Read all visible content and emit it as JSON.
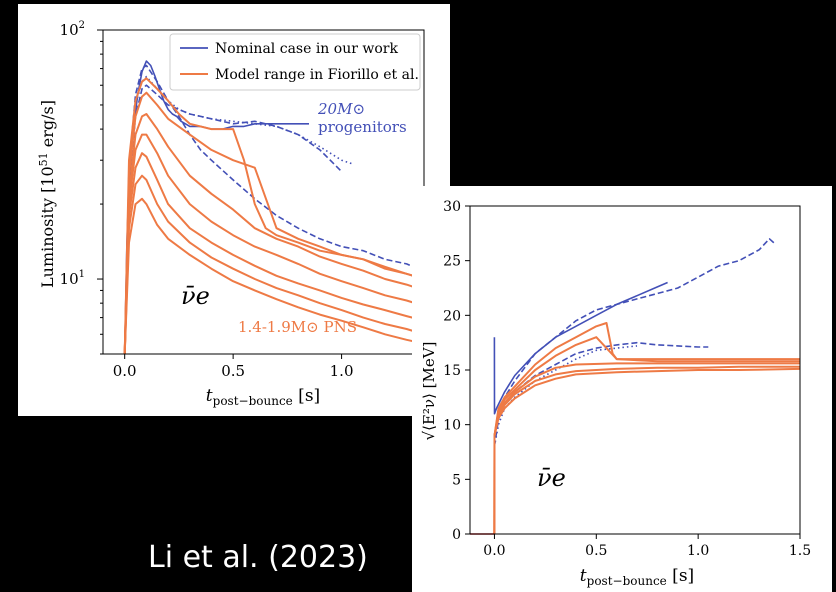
{
  "citation": "Li et al. (2023)",
  "colors": {
    "blue": "#4350b7",
    "orange": "#ee7a45",
    "background": "#000000",
    "panel": "#ffffff"
  },
  "chart_data": [
    {
      "type": "line",
      "xlabel": "t_post−bounce [s]",
      "ylabel": "Luminosity [10^51 erg/s]",
      "yscale": "log",
      "xlim": [
        -0.1,
        1.38
      ],
      "ylim": [
        5,
        100
      ],
      "xticks": [
        "0.0",
        "0.5",
        "1.0"
      ],
      "yticks": [
        "10^1",
        "10^2"
      ],
      "legend": {
        "placement": "top-right",
        "entries": [
          "Nominal case in our work",
          "Model range in Fiorillo et al."
        ]
      },
      "annotations": {
        "flavor": "ν̄e",
        "progenitors": "20M⊙ progenitors",
        "pns": "1.4-1.9M⊙ PNS"
      },
      "series": [
        {
          "name": "Nominal case in our work",
          "color": "#4350b7",
          "style": "solid",
          "x": [
            0,
            0.01,
            0.02,
            0.04,
            0.06,
            0.08,
            0.1,
            0.12,
            0.14,
            0.16,
            0.18,
            0.2,
            0.22,
            0.24,
            0.26,
            0.28,
            0.3,
            0.35,
            0.4,
            0.45,
            0.5,
            0.55,
            0.6,
            0.65,
            0.7,
            0.75,
            0.8,
            0.85
          ],
          "y": [
            5,
            14,
            24,
            40,
            55,
            68,
            75,
            72,
            65,
            58,
            52,
            48,
            46,
            45,
            43,
            42,
            41,
            41,
            40,
            40,
            41,
            41,
            42,
            42,
            42,
            42,
            42,
            42
          ]
        },
        {
          "color": "#4350b7",
          "style": "dashed",
          "x": [
            0,
            0.02,
            0.05,
            0.08,
            0.1,
            0.15,
            0.2,
            0.25,
            0.3,
            0.35,
            0.4,
            0.5,
            0.6,
            0.7,
            0.8,
            0.9,
            1.0,
            1.1,
            1.2,
            1.3,
            1.35
          ],
          "y": [
            5,
            28,
            55,
            70,
            72,
            62,
            52,
            45,
            38,
            33,
            30,
            25,
            21,
            18,
            16,
            14.5,
            13.5,
            13,
            12,
            11.5,
            11
          ]
        },
        {
          "color": "#4350b7",
          "style": "dotted",
          "x": [
            0,
            0.02,
            0.05,
            0.08,
            0.1,
            0.15,
            0.2,
            0.25,
            0.3,
            0.4,
            0.5,
            0.6,
            0.7,
            0.8,
            0.9,
            1.0,
            1.05
          ],
          "y": [
            5,
            25,
            50,
            62,
            65,
            58,
            52,
            48,
            46,
            44,
            43,
            42,
            41,
            38,
            34,
            30,
            29
          ]
        },
        {
          "color": "#4350b7",
          "style": "dashed",
          "x": [
            0,
            0.02,
            0.05,
            0.08,
            0.1,
            0.15,
            0.2,
            0.3,
            0.4,
            0.5,
            0.6,
            0.7,
            0.8,
            0.9,
            1.0
          ],
          "y": [
            5,
            22,
            45,
            58,
            60,
            55,
            50,
            46,
            44,
            42,
            43,
            41,
            38,
            33,
            27
          ]
        },
        {
          "name": "Model range in Fiorillo et al.",
          "color": "#ee7a45",
          "style": "solid",
          "x": [
            0,
            0.02,
            0.05,
            0.08,
            0.1,
            0.15,
            0.2,
            0.25,
            0.3,
            0.4,
            0.5,
            0.55,
            0.6,
            0.65,
            0.7,
            0.8,
            0.9,
            1.0,
            1.1,
            1.2,
            1.3,
            1.38
          ],
          "y": [
            5,
            30,
            52,
            62,
            64,
            58,
            52,
            46,
            42,
            40,
            40,
            30,
            20,
            16,
            15,
            14,
            13,
            12.5,
            12,
            11,
            10.5,
            10
          ]
        },
        {
          "color": "#ee7a45",
          "style": "solid",
          "x": [
            0,
            0.02,
            0.05,
            0.08,
            0.1,
            0.15,
            0.2,
            0.3,
            0.4,
            0.5,
            0.6,
            0.7,
            0.8,
            0.9,
            1.0,
            1.1,
            1.2,
            1.3,
            1.38
          ],
          "y": [
            5,
            26,
            45,
            54,
            56,
            50,
            44,
            38,
            33,
            30,
            28,
            16,
            14.5,
            13.5,
            12.5,
            12,
            11.2,
            10.5,
            10
          ]
        },
        {
          "color": "#ee7a45",
          "style": "solid",
          "x": [
            0,
            0.02,
            0.05,
            0.08,
            0.1,
            0.15,
            0.2,
            0.3,
            0.4,
            0.5,
            0.6,
            0.7,
            0.8,
            0.9,
            1.0,
            1.1,
            1.2,
            1.3,
            1.38
          ],
          "y": [
            5,
            22,
            38,
            45,
            46,
            40,
            34,
            26,
            22,
            19,
            16,
            14.5,
            13.5,
            12.3,
            11.5,
            10.8,
            10,
            9.5,
            9
          ]
        },
        {
          "color": "#ee7a45",
          "style": "solid",
          "x": [
            0,
            0.02,
            0.05,
            0.08,
            0.1,
            0.15,
            0.2,
            0.3,
            0.4,
            0.5,
            0.6,
            0.7,
            0.8,
            0.9,
            1.0,
            1.1,
            1.2,
            1.3,
            1.38
          ],
          "y": [
            5,
            20,
            33,
            38,
            38,
            32,
            26,
            20,
            17,
            15,
            13.5,
            12.5,
            11.5,
            10.5,
            9.8,
            9.2,
            8.6,
            8.2,
            7.8
          ]
        },
        {
          "color": "#ee7a45",
          "style": "solid",
          "x": [
            0,
            0.02,
            0.05,
            0.08,
            0.1,
            0.15,
            0.2,
            0.3,
            0.4,
            0.5,
            0.6,
            0.7,
            0.8,
            0.9,
            1.0,
            1.1,
            1.2,
            1.3,
            1.38
          ],
          "y": [
            5,
            18,
            28,
            32,
            31,
            25,
            20,
            16,
            14,
            12.5,
            11.3,
            10.3,
            9.6,
            9,
            8.4,
            7.9,
            7.5,
            7.1,
            6.8
          ]
        },
        {
          "color": "#ee7a45",
          "style": "solid",
          "x": [
            0,
            0.02,
            0.05,
            0.08,
            0.1,
            0.15,
            0.2,
            0.3,
            0.4,
            0.5,
            0.6,
            0.7,
            0.8,
            0.9,
            1.0,
            1.1,
            1.2,
            1.3,
            1.38
          ],
          "y": [
            5,
            16,
            24,
            26,
            25,
            20,
            17,
            14,
            12.2,
            11,
            10,
            9.2,
            8.6,
            8,
            7.5,
            7,
            6.6,
            6.3,
            6
          ]
        },
        {
          "color": "#ee7a45",
          "style": "solid",
          "x": [
            0,
            0.02,
            0.05,
            0.08,
            0.1,
            0.15,
            0.2,
            0.3,
            0.4,
            0.5,
            0.6,
            0.7,
            0.8,
            0.9,
            1.0,
            1.1,
            1.2,
            1.3,
            1.38
          ],
          "y": [
            5,
            14,
            20,
            21,
            20,
            16.5,
            14.5,
            12.5,
            11,
            9.8,
            9,
            8.3,
            7.7,
            7.2,
            6.8,
            6.4,
            6,
            5.7,
            5.5
          ]
        }
      ]
    },
    {
      "type": "line",
      "xlabel": "t_post−bounce [s]",
      "ylabel": "√⟨E²ν⟩ [MeV]",
      "xlim": [
        -0.12,
        1.5
      ],
      "ylim": [
        0,
        30
      ],
      "xticks": [
        "0.0",
        "0.5",
        "1.0",
        "1.5"
      ],
      "yticks": [
        "0",
        "5",
        "10",
        "15",
        "20",
        "25",
        "30"
      ],
      "annotations": {
        "flavor": "ν̄e"
      },
      "series": [
        {
          "color": "#4350b7",
          "style": "solid",
          "x": [
            0,
            0.0001,
            0.01,
            0.05,
            0.1,
            0.2,
            0.3,
            0.4,
            0.5,
            0.6,
            0.7,
            0.8,
            0.85
          ],
          "y": [
            18,
            11,
            11.5,
            13,
            14.5,
            16.5,
            18,
            19,
            20,
            21,
            21.8,
            22.6,
            23
          ]
        },
        {
          "color": "#4350b7",
          "style": "dashed",
          "x": [
            0,
            0.02,
            0.05,
            0.1,
            0.2,
            0.3,
            0.4,
            0.5,
            0.6,
            0.7,
            0.8,
            0.9,
            1.0,
            1.1,
            1.2,
            1.3,
            1.35,
            1.38
          ],
          "y": [
            8,
            11,
            12.5,
            14,
            16.5,
            18,
            19.5,
            20.5,
            21,
            21.5,
            22,
            22.5,
            23.5,
            24.5,
            25,
            26,
            27,
            26.5
          ]
        },
        {
          "color": "#4350b7",
          "style": "dashed",
          "x": [
            0,
            0.02,
            0.05,
            0.1,
            0.2,
            0.3,
            0.4,
            0.5,
            0.6,
            0.7,
            0.8,
            0.9,
            1.0,
            1.05
          ],
          "y": [
            8,
            10.5,
            12,
            13,
            14.5,
            15.5,
            16.5,
            17,
            17.3,
            17.5,
            17.3,
            17.2,
            17.1,
            17.1
          ]
        },
        {
          "color": "#4350b7",
          "style": "dotted",
          "x": [
            0,
            0.02,
            0.05,
            0.1,
            0.2,
            0.3,
            0.4,
            0.5,
            0.6,
            0.7
          ],
          "y": [
            8,
            10,
            11.5,
            12.5,
            14,
            15,
            16,
            16.8,
            17,
            17.2
          ]
        },
        {
          "color": "#ee7a45",
          "style": "solid",
          "x": [
            0,
            0.0001,
            0.02,
            0.05,
            0.1,
            0.2,
            0.3,
            0.4,
            0.5,
            0.55,
            0.58,
            0.6,
            0.8,
            1.0,
            1.2,
            1.5
          ],
          "y": [
            0,
            9,
            11.5,
            12.5,
            13.5,
            15.5,
            17,
            18,
            19,
            19.3,
            16.5,
            16,
            16,
            16,
            16,
            16
          ]
        },
        {
          "color": "#ee7a45",
          "style": "solid",
          "x": [
            0,
            0.0001,
            0.02,
            0.05,
            0.1,
            0.2,
            0.3,
            0.4,
            0.5,
            0.6,
            0.8,
            1.0,
            1.2,
            1.5
          ],
          "y": [
            0,
            9,
            11.3,
            12.3,
            13.2,
            15,
            16.3,
            17.3,
            18,
            16,
            15.8,
            15.8,
            15.8,
            15.8
          ]
        },
        {
          "color": "#ee7a45",
          "style": "solid",
          "x": [
            0,
            0.0001,
            0.02,
            0.05,
            0.1,
            0.2,
            0.3,
            0.4,
            0.6,
            0.8,
            1.0,
            1.2,
            1.5
          ],
          "y": [
            0,
            9,
            11,
            12,
            13,
            14.4,
            15.2,
            15.5,
            15.6,
            15.6,
            15.6,
            15.6,
            15.6
          ]
        },
        {
          "color": "#ee7a45",
          "style": "solid",
          "x": [
            0,
            0.0001,
            0.02,
            0.05,
            0.1,
            0.2,
            0.3,
            0.4,
            0.6,
            0.8,
            1.0,
            1.2,
            1.5
          ],
          "y": [
            0,
            9,
            10.8,
            11.8,
            12.8,
            14,
            14.6,
            14.9,
            15.1,
            15.2,
            15.2,
            15.3,
            15.3
          ]
        },
        {
          "color": "#ee7a45",
          "style": "solid",
          "x": [
            0,
            0.0001,
            0.02,
            0.05,
            0.1,
            0.2,
            0.3,
            0.4,
            0.6,
            0.8,
            1.0,
            1.2,
            1.5
          ],
          "y": [
            0,
            9,
            10.6,
            11.5,
            12.4,
            13.6,
            14.2,
            14.6,
            14.8,
            14.9,
            15,
            15,
            15.1
          ]
        }
      ]
    }
  ]
}
